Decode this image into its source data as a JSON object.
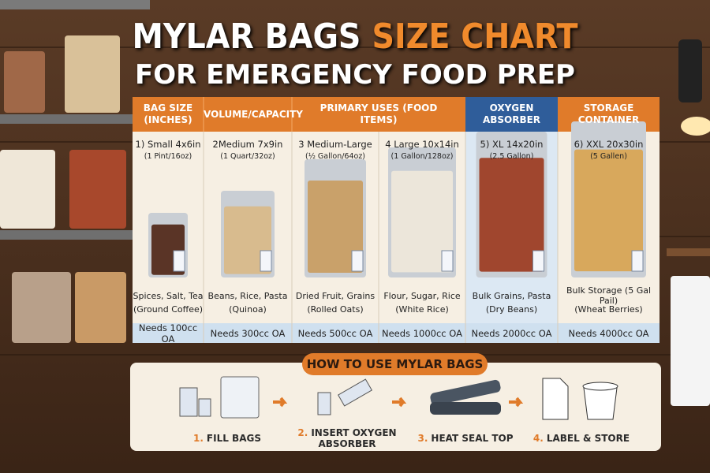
{
  "header": {
    "title_main": "MYLAR BAGS",
    "title_accent": "SIZE CHART",
    "subtitle": "FOR EMERGENCY FOOD PREP"
  },
  "table": {
    "headers": [
      "BAG SIZE (INCHES)",
      "VOLUME/CAPACITY",
      "PRIMARY USES (FOOD ITEMS)",
      "OXYGEN ABSORBER",
      "STORAGE CONTAINER"
    ],
    "columns": [
      {
        "size": "1) Small 4x6in",
        "capacity": "(1 Pint/16oz)",
        "uses": "Spices, Salt, Tea",
        "example": "(Ground Coffee)",
        "absorber": "Needs 100cc OA"
      },
      {
        "size": "2Medium 7x9in",
        "capacity": "(1 Quart/32oz)",
        "uses": "Beans, Rice, Pasta",
        "example": "(Quinoa)",
        "absorber": "Needs 300cc OA"
      },
      {
        "size": "3 Medium-Large",
        "capacity": "(½ Gallon/64oz)",
        "uses": "Dried Fruit, Grains",
        "example": "(Rolled Oats)",
        "absorber": "Needs 500cc OA"
      },
      {
        "size": "4 Large 10x14in",
        "capacity": "(1 Gallon/128oz)",
        "uses": "Flour, Sugar, Rice",
        "example": "(White Rice)",
        "absorber": "Needs 1000cc OA"
      },
      {
        "size": "5) XL 14x20in",
        "capacity": "(2.5 Gallon)",
        "uses": "Bulk Grains, Pasta",
        "example": "(Dry Beans)",
        "absorber": "Needs 2000cc OA"
      },
      {
        "size": "6) XXL 20x30in",
        "capacity": "(5 Gallen)",
        "uses": "Bulk Storage (5 Gal Pail)",
        "example": "(Wheat Berries)",
        "absorber": "Needs 4000cc OA"
      }
    ]
  },
  "how_to": {
    "title": "HOW TO USE MYLAR BAGS",
    "steps": [
      {
        "number": "1.",
        "label": "FILL BAGS"
      },
      {
        "number": "2.",
        "label": "INSERT OXYGEN ABSORBER"
      },
      {
        "number": "3.",
        "label": "HEAT SEAL TOP"
      },
      {
        "number": "4.",
        "label": "LABEL & STORE"
      }
    ]
  }
}
